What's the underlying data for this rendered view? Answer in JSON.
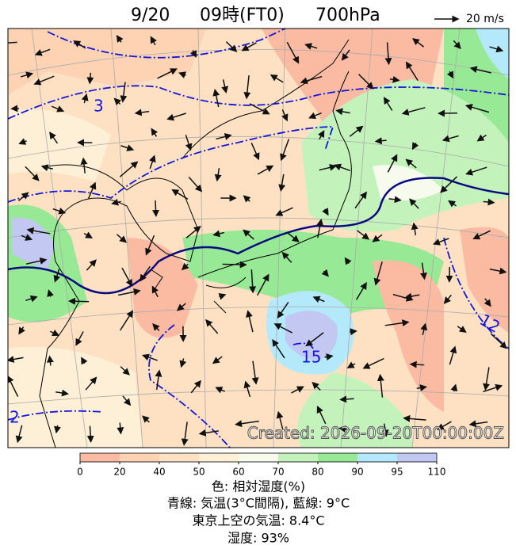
{
  "header": {
    "date": "9/20",
    "time": "09時(FT0)",
    "level": "700hPa",
    "vector_legend": "20 m/s"
  },
  "map": {
    "contour_labels": [
      "3",
      "15",
      "12",
      "2"
    ],
    "created": "Created: 2026-09-20T00:00:00Z"
  },
  "colorbar": {
    "ticks": [
      0,
      20,
      40,
      50,
      60,
      70,
      80,
      90,
      95,
      110
    ],
    "colors": [
      "#fbbba3",
      "#fdd3b4",
      "#fde1c2",
      "#fdf0d6",
      "#f7fbee",
      "#c4f2bb",
      "#97e995",
      "#b3e9fa",
      "#c3c8f2"
    ]
  },
  "captions": [
    "色: 相対湿度(%)",
    "青線: 気温(3°C間隔), 藍線: 9°C",
    "東京上空の気温: 8.4°C",
    "湿度: 93%"
  ]
}
